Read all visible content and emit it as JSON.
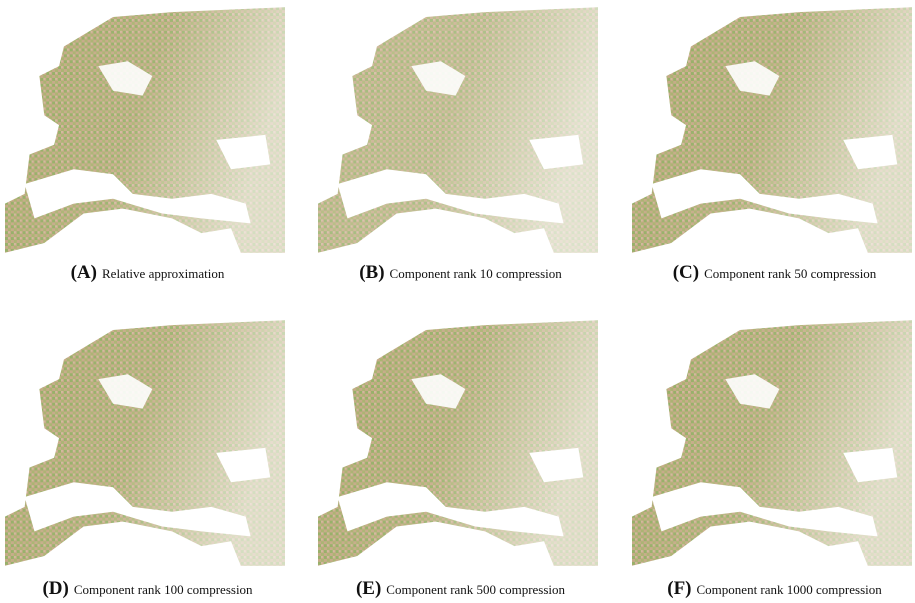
{
  "panels": [
    {
      "label": "(A)",
      "caption": "Relative approximation"
    },
    {
      "label": "(B)",
      "caption": "Component rank 10 compression"
    },
    {
      "label": "(C)",
      "caption": "Component rank 50 compression"
    },
    {
      "label": "(D)",
      "caption": "Component rank 100 compression"
    },
    {
      "label": "(E)",
      "caption": "Component rank 500 compression"
    },
    {
      "label": "(F)",
      "caption": "Component rank 1000 compression"
    }
  ]
}
